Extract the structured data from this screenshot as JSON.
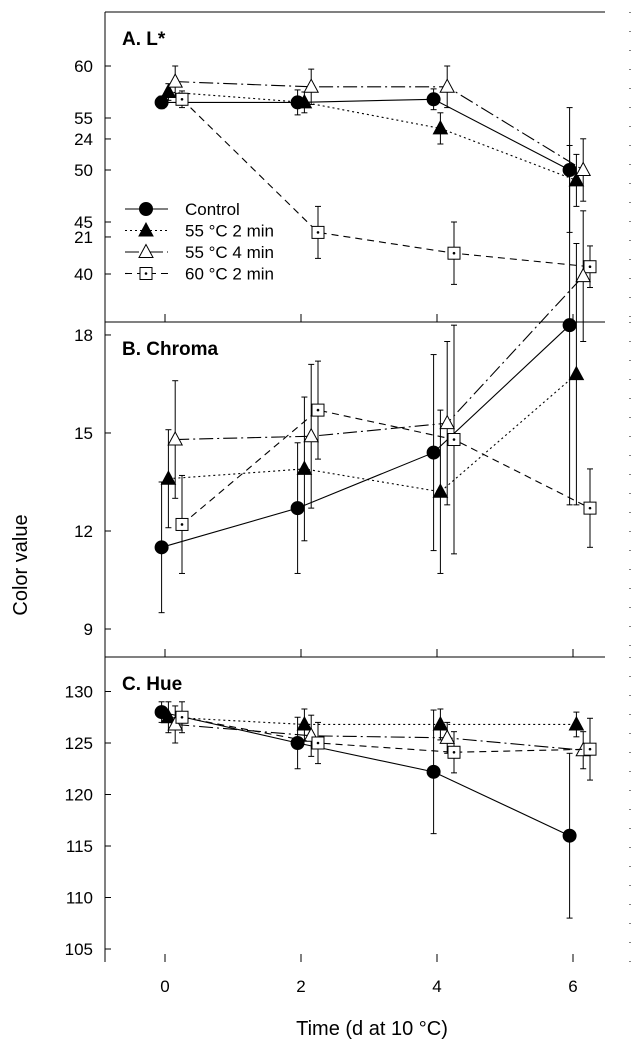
{
  "figure": {
    "ylabel": "Color value",
    "xlabel": "Time (d at 10 °C)"
  },
  "legend": {
    "entries": [
      {
        "label": "Control",
        "marker": "circle-filled",
        "dash": "solid"
      },
      {
        "label": "55 °C  2 min",
        "marker": "triangle-filled",
        "dash": "dotted"
      },
      {
        "label": "55 °C  4 min",
        "marker": "triangle-open",
        "dash": "dashdot"
      },
      {
        "label": "60 °C  2 min",
        "marker": "square-dot",
        "dash": "dashed"
      }
    ]
  },
  "colors": {
    "ink": "#000000",
    "background": "#ffffff"
  },
  "chart_data": [
    {
      "type": "line",
      "title": "A.  L*",
      "x": [
        0,
        2,
        4,
        6
      ],
      "x_ticks": [
        "0",
        "2",
        "4",
        "6"
      ],
      "ylim": [
        37,
        65
      ],
      "y_ticks": [
        "40",
        "45",
        "50",
        "55",
        "60"
      ],
      "grid": false,
      "legend": "lower-left",
      "series": [
        {
          "name": "Control",
          "x": [
            -0.05,
            1.95,
            3.95,
            5.95
          ],
          "values": [
            56.5,
            56.5,
            56.8,
            50.0
          ],
          "err": [
            0.6,
            1.2,
            1.0,
            6.0
          ]
        },
        {
          "name": "55 °C  2 min",
          "x": [
            0.05,
            2.05,
            4.05,
            6.05
          ],
          "values": [
            57.5,
            56.5,
            54.0,
            49.0
          ],
          "err": [
            0.8,
            1.0,
            1.5,
            2.5
          ]
        },
        {
          "name": "55 °C  4 min",
          "x": [
            0.15,
            2.15,
            4.15,
            6.15
          ],
          "values": [
            58.5,
            58.0,
            58.0,
            50.0
          ],
          "err": [
            1.5,
            1.7,
            2.0,
            3.0
          ]
        },
        {
          "name": "60 °C  2 min",
          "x": [
            0.25,
            2.25,
            4.25,
            6.25
          ],
          "values": [
            56.8,
            44.0,
            42.0,
            40.7
          ],
          "err": [
            0.8,
            2.5,
            3.0,
            2.0
          ]
        }
      ]
    },
    {
      "type": "line",
      "title": "B.  Chroma",
      "x": [
        0,
        2,
        4,
        6
      ],
      "x_ticks": [
        "0",
        "2",
        "4",
        "6"
      ],
      "ylim": [
        8,
        24
      ],
      "y_ticks": [
        "9",
        "12",
        "15",
        "18",
        "21",
        "24"
      ],
      "grid": false,
      "series": [
        {
          "name": "Control",
          "x": [
            -0.05,
            1.95,
            3.95,
            5.95
          ],
          "values": [
            11.5,
            12.7,
            14.4,
            18.3
          ],
          "err": [
            2.0,
            2.0,
            3.0,
            5.5
          ]
        },
        {
          "name": "55 °C  2 min",
          "x": [
            0.05,
            2.05,
            4.05,
            6.05
          ],
          "values": [
            13.6,
            13.9,
            13.2,
            16.8
          ],
          "err": [
            1.5,
            2.2,
            2.5,
            4.0
          ]
        },
        {
          "name": "55 °C  4 min",
          "x": [
            0.15,
            2.15,
            4.15,
            6.15
          ],
          "values": [
            14.8,
            14.9,
            15.3,
            19.8
          ],
          "err": [
            1.8,
            2.2,
            2.5,
            2.0
          ]
        },
        {
          "name": "60 °C  2 min",
          "x": [
            0.25,
            2.25,
            4.25,
            6.25
          ],
          "values": [
            12.2,
            15.7,
            14.8,
            12.7
          ],
          "err": [
            1.5,
            1.5,
            3.5,
            1.2
          ]
        }
      ]
    },
    {
      "type": "line",
      "title": "C.  Hue",
      "x": [
        0,
        2,
        4,
        6
      ],
      "x_ticks": [
        "0",
        "2",
        "4",
        "6"
      ],
      "ylim": [
        103,
        134
      ],
      "y_ticks": [
        "105",
        "110",
        "115",
        "120",
        "125",
        "130"
      ],
      "grid": false,
      "series": [
        {
          "name": "Control",
          "x": [
            -0.05,
            1.95,
            3.95,
            5.95
          ],
          "values": [
            128.0,
            125.0,
            122.2,
            116.0
          ],
          "err": [
            1.0,
            2.5,
            6.0,
            8.0
          ]
        },
        {
          "name": "55 °C  2 min",
          "x": [
            0.05,
            2.05,
            4.05,
            6.05
          ],
          "values": [
            127.5,
            126.8,
            126.8,
            126.8
          ],
          "err": [
            1.5,
            1.5,
            1.5,
            1.2
          ]
        },
        {
          "name": "55 °C  4 min",
          "x": [
            0.15,
            2.15,
            4.15,
            6.15
          ],
          "values": [
            126.8,
            125.7,
            125.5,
            124.3
          ],
          "err": [
            1.8,
            2.0,
            1.5,
            1.8
          ]
        },
        {
          "name": "60 °C  2 min",
          "x": [
            0.25,
            2.25,
            4.25,
            6.25
          ],
          "values": [
            127.5,
            125.0,
            124.1,
            124.4
          ],
          "err": [
            1.5,
            2.0,
            2.0,
            3.0
          ]
        }
      ]
    }
  ]
}
